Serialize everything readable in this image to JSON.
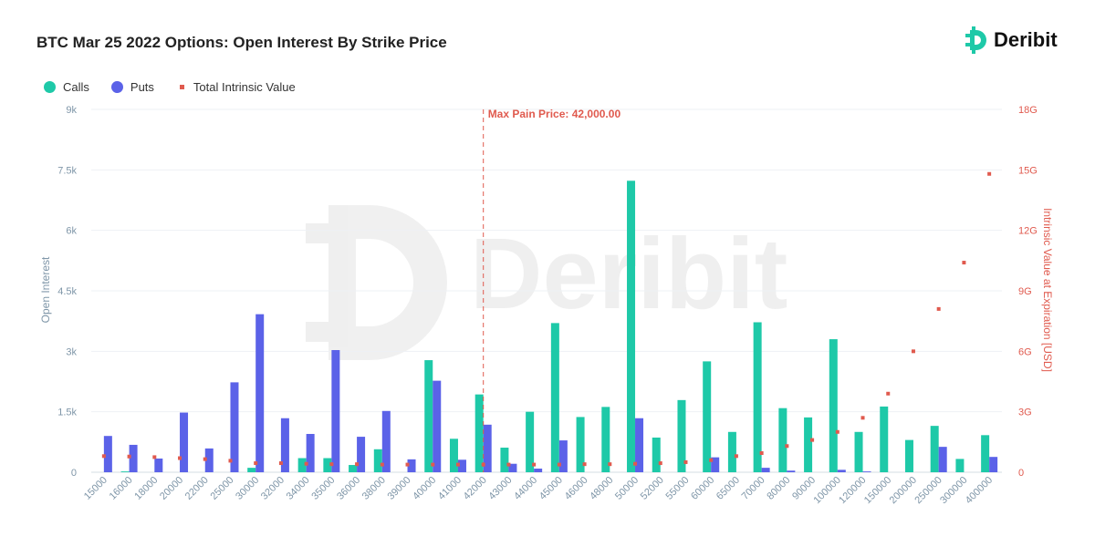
{
  "header": {
    "title": "BTC Mar 25 2022 Options: Open Interest By Strike Price",
    "brand": "Deribit"
  },
  "watermark": "Deribit",
  "colors": {
    "calls": "#1ec9a8",
    "puts": "#5b62e8",
    "intrinsic": "#e05a4e",
    "left_axis": "#7f96a8",
    "right_axis": "#e05a4e"
  },
  "chart_data": {
    "type": "bar",
    "title": "BTC Mar 25 2022 Options: Open Interest By Strike Price",
    "categories": [
      "15000",
      "16000",
      "18000",
      "20000",
      "22000",
      "25000",
      "30000",
      "32000",
      "34000",
      "35000",
      "36000",
      "38000",
      "39000",
      "40000",
      "41000",
      "42000",
      "43000",
      "44000",
      "45000",
      "46000",
      "48000",
      "50000",
      "52000",
      "55000",
      "60000",
      "65000",
      "70000",
      "80000",
      "90000",
      "100000",
      "120000",
      "150000",
      "200000",
      "250000",
      "300000",
      "400000"
    ],
    "series": [
      {
        "name": "Calls",
        "axis": "left",
        "values": [
          0,
          20,
          0,
          0,
          0,
          0,
          110,
          0,
          350,
          350,
          180,
          570,
          0,
          2780,
          830,
          1930,
          610,
          1500,
          3700,
          1370,
          1620,
          7230,
          860,
          1790,
          2750,
          1000,
          3720,
          1590,
          1360,
          3300,
          1000,
          1630,
          800,
          1150,
          330,
          920
        ]
      },
      {
        "name": "Puts",
        "axis": "left",
        "values": [
          900,
          680,
          340,
          1480,
          590,
          2230,
          3920,
          1340,
          950,
          3030,
          880,
          1520,
          320,
          2270,
          310,
          1180,
          210,
          90,
          790,
          0,
          0,
          1340,
          0,
          0,
          370,
          0,
          110,
          40,
          0,
          60,
          20,
          0,
          0,
          630,
          0,
          380
        ]
      },
      {
        "name": "Total Intrinsic Value",
        "axis": "right",
        "values": [
          0.8,
          0.78,
          0.75,
          0.7,
          0.65,
          0.57,
          0.45,
          0.45,
          0.42,
          0.4,
          0.4,
          0.38,
          0.38,
          0.38,
          0.38,
          0.38,
          0.38,
          0.38,
          0.38,
          0.4,
          0.4,
          0.42,
          0.45,
          0.5,
          0.6,
          0.8,
          0.95,
          1.3,
          1.6,
          2.0,
          2.7,
          3.9,
          6.0,
          8.1,
          10.4,
          14.8
        ]
      }
    ],
    "ylabel": "Open Interest",
    "ylim": [
      0,
      9000
    ],
    "yticks": [
      "0",
      "1.5k",
      "3k",
      "4.5k",
      "6k",
      "7.5k",
      "9k"
    ],
    "y2label": "Intrinsic Value at Expiration [USD]",
    "y2lim": [
      0,
      18
    ],
    "y2ticks": [
      "0",
      "3G",
      "6G",
      "9G",
      "12G",
      "15G",
      "18G"
    ],
    "max_pain": {
      "strike": "42000",
      "label": "Max Pain Price: 42,000.00"
    },
    "legend": {
      "placement": "top-left"
    },
    "grid": true
  }
}
